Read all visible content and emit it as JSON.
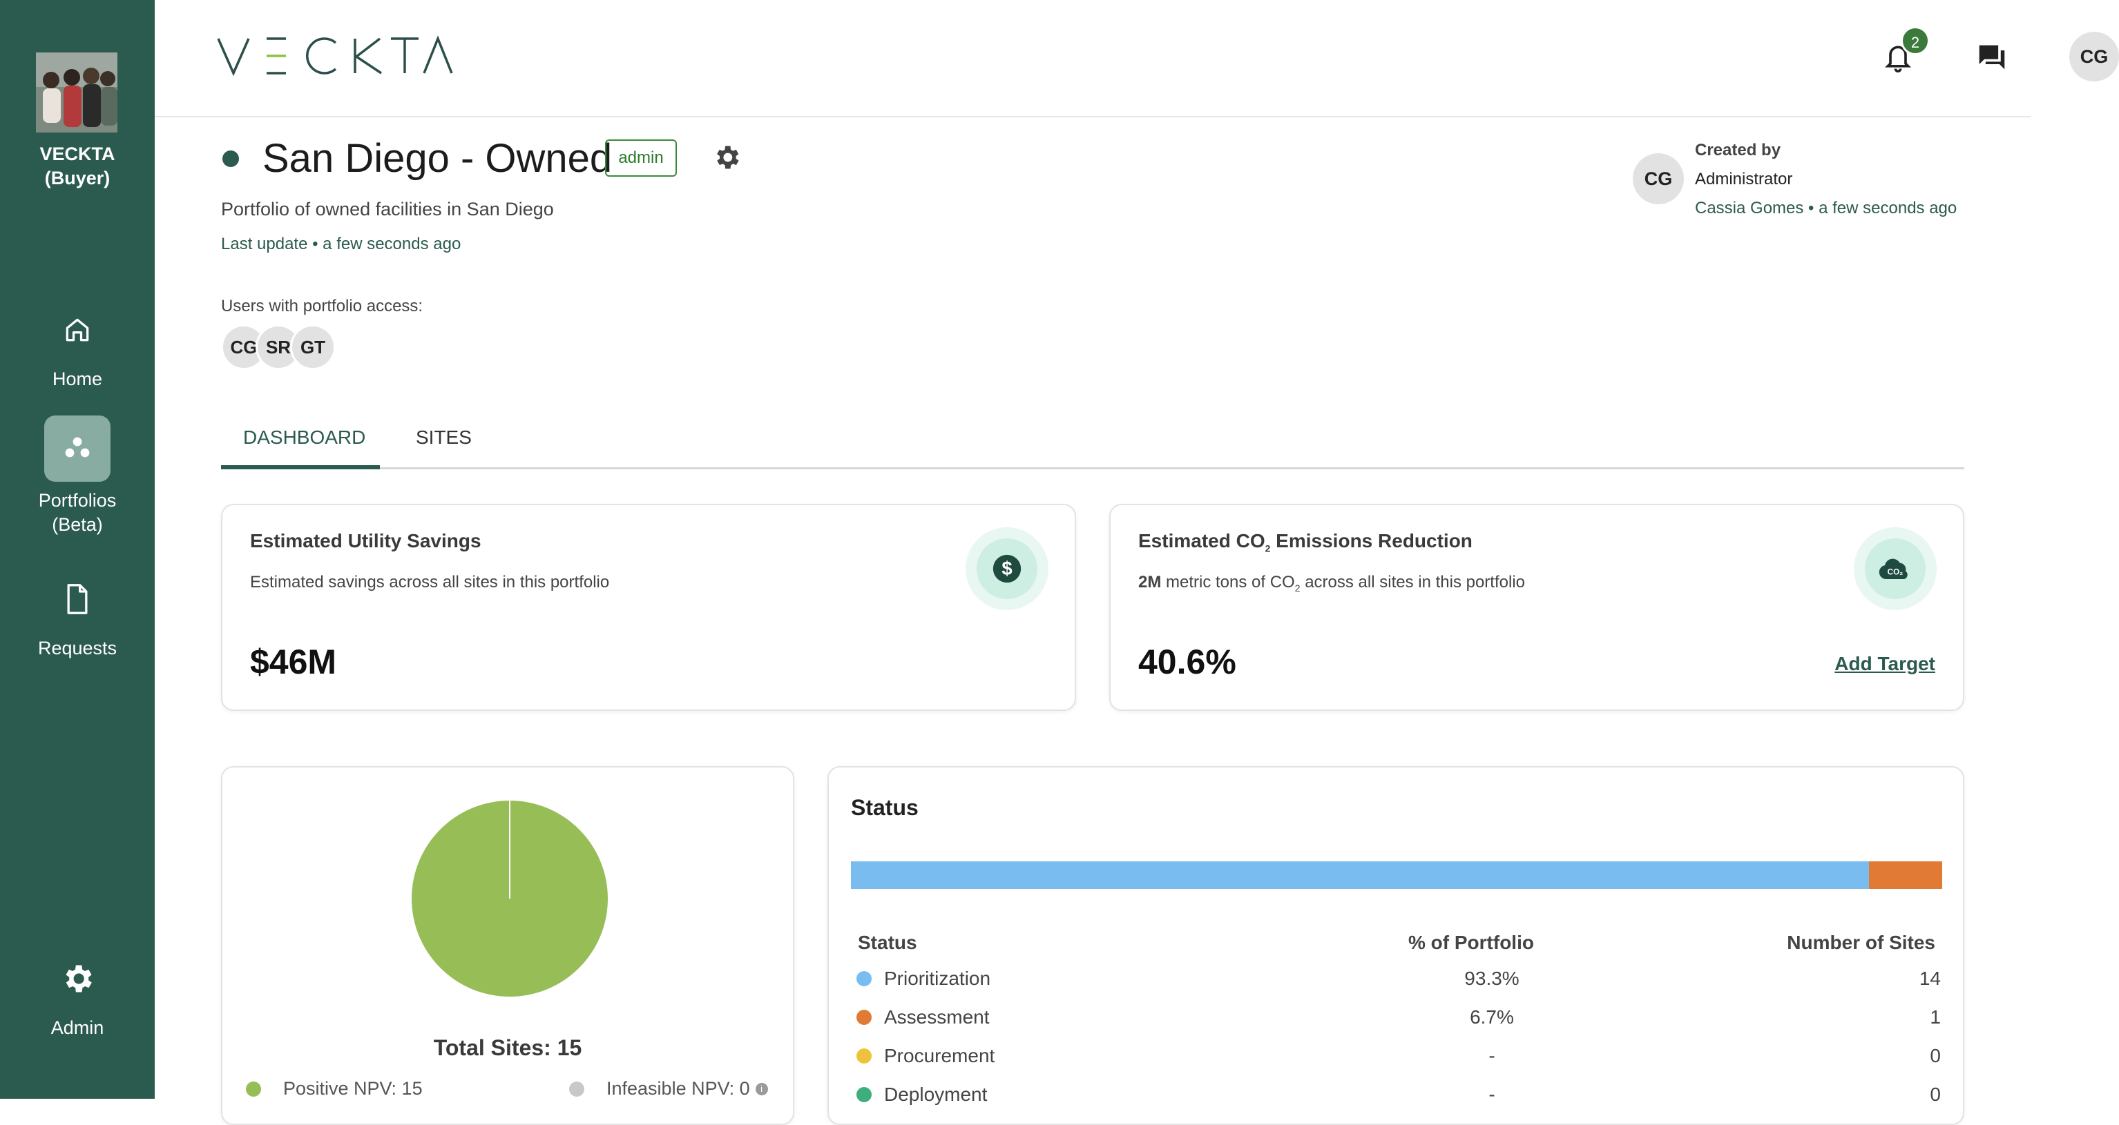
{
  "sidebar": {
    "org_name_line1": "VECKTA",
    "org_name_line2": "(Buyer)",
    "items": [
      {
        "label": "Home",
        "icon": "home-icon"
      },
      {
        "label": "Portfolios",
        "label2": "(Beta)",
        "icon": "portfolios-icon",
        "active": true
      },
      {
        "label": "Requests",
        "icon": "document-icon"
      },
      {
        "label": "Admin",
        "icon": "gear-icon"
      }
    ]
  },
  "header": {
    "logo_text": "VECKTA",
    "notification_count": "2",
    "user_initials": "CG"
  },
  "portfolio": {
    "title": "San Diego - Owned",
    "role_badge": "admin",
    "description": "Portfolio of owned facilities in San Diego",
    "last_update": "Last update • a few seconds ago",
    "access_label": "Users with portfolio access:",
    "access_users": [
      "CG",
      "SR",
      "GT"
    ],
    "created_by_label": "Created by",
    "created_by_role": "Administrator",
    "created_by_who": "Cassia Gomes • a few seconds ago",
    "created_by_initials": "CG"
  },
  "tabs": [
    {
      "label": "DASHBOARD",
      "active": true
    },
    {
      "label": "SITES",
      "active": false
    }
  ],
  "savings_card": {
    "title": "Estimated Utility Savings",
    "description": "Estimated savings across all sites in this portfolio",
    "value": "$46M",
    "icon": "dollar-icon"
  },
  "emissions_card": {
    "title_pre": "Estimated CO",
    "title_sub": "2",
    "title_post": " Emissions Reduction",
    "desc_bold": "2M",
    "desc_pre": " metric tons of CO",
    "desc_sub": "2",
    "desc_post": " across all sites in this portfolio",
    "value": "40.6%",
    "add_target": "Add Target",
    "icon": "co2-cloud-icon"
  },
  "npv_card": {
    "total_sites": "Total Sites: 15",
    "legend": [
      {
        "label": "Positive NPV: 15",
        "color": "#97bd57"
      },
      {
        "label": "Infeasible NPV: 0",
        "color": "#c8c8c8"
      }
    ]
  },
  "status_card": {
    "title": "Status",
    "columns": [
      "Status",
      "% of Portfolio",
      "Number of Sites"
    ],
    "rows": [
      {
        "name": "Prioritization",
        "pct": "93.3%",
        "count": "14",
        "color": "#79bdf0",
        "share": 0.933
      },
      {
        "name": "Assessment",
        "pct": "6.7%",
        "count": "1",
        "color": "#e07a34",
        "share": 0.067
      },
      {
        "name": "Procurement",
        "pct": "-",
        "count": "0",
        "color": "#f0c23a",
        "share": 0
      },
      {
        "name": "Deployment",
        "pct": "-",
        "count": "0",
        "color": "#3fae7d",
        "share": 0
      }
    ]
  },
  "chart_data": {
    "type": "pie",
    "categories": [
      "Positive NPV",
      "Infeasible NPV"
    ],
    "values": [
      15,
      0
    ],
    "title": "Total Sites: 15"
  }
}
